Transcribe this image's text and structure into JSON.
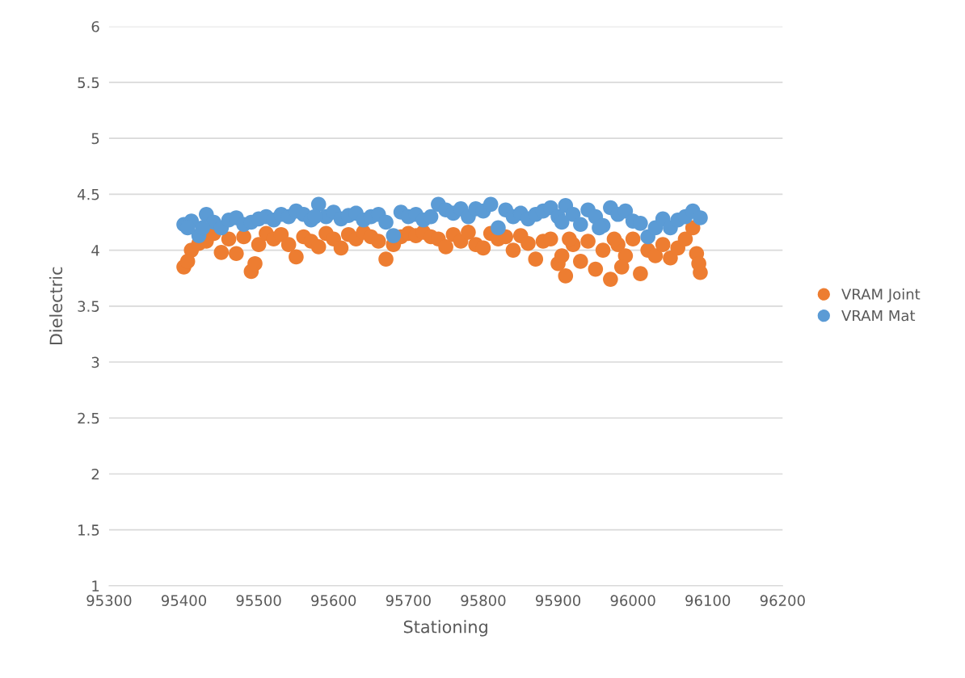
{
  "chart_data": {
    "type": "scatter",
    "xlabel": "Stationing",
    "ylabel": "Dielectric",
    "xlim": [
      95300,
      96200
    ],
    "xticks": [
      95300,
      95400,
      95500,
      95600,
      95700,
      95800,
      95900,
      96000,
      96100,
      96200
    ],
    "ylim": [
      1,
      6
    ],
    "yticks": [
      1,
      1.5,
      2,
      2.5,
      3,
      3.5,
      4,
      4.5,
      5,
      5.5,
      6
    ],
    "grid": "y",
    "legend": "right",
    "marker": "circle",
    "series": [
      {
        "name": "VRAM Joint",
        "color": "#ed7d31",
        "x": [
          95400,
          95410,
          95420,
          95430,
          95440,
          95450,
          95460,
          95470,
          95480,
          95490,
          95500,
          95510,
          95520,
          95530,
          95540,
          95550,
          95560,
          95570,
          95580,
          95590,
          95600,
          95610,
          95620,
          95630,
          95640,
          95650,
          95660,
          95670,
          95680,
          95690,
          95700,
          95710,
          95720,
          95730,
          95740,
          95750,
          95760,
          95770,
          95780,
          95790,
          95800,
          95810,
          95820,
          95830,
          95840,
          95850,
          95860,
          95870,
          95880,
          95890,
          95900,
          95910,
          95920,
          95930,
          95940,
          95950,
          95960,
          95970,
          95980,
          95990,
          96000,
          96010,
          96020,
          96030,
          96040,
          96050,
          96060,
          96070,
          96080,
          96090,
          95405,
          95495,
          95905,
          95915,
          95975,
          95985,
          96085,
          96088
        ],
        "values": [
          3.85,
          4.0,
          4.06,
          4.08,
          4.15,
          3.98,
          4.1,
          3.97,
          4.12,
          3.81,
          4.05,
          4.15,
          4.1,
          4.14,
          4.05,
          3.94,
          4.12,
          4.08,
          4.03,
          4.15,
          4.1,
          4.02,
          4.14,
          4.1,
          4.16,
          4.12,
          4.08,
          3.92,
          4.05,
          4.12,
          4.15,
          4.13,
          4.16,
          4.12,
          4.1,
          4.03,
          4.14,
          4.08,
          4.16,
          4.05,
          4.02,
          4.15,
          4.1,
          4.12,
          4.0,
          4.13,
          4.06,
          3.92,
          4.08,
          4.1,
          3.88,
          3.77,
          4.05,
          3.9,
          4.08,
          3.83,
          4.0,
          3.74,
          4.05,
          3.95,
          4.1,
          3.79,
          4.0,
          3.95,
          4.05,
          3.93,
          4.02,
          4.1,
          4.2,
          3.8,
          3.9,
          3.88,
          3.95,
          4.1,
          4.1,
          3.85,
          3.97,
          3.88
        ]
      },
      {
        "name": "VRAM Mat",
        "color": "#5b9bd5",
        "x": [
          95400,
          95410,
          95420,
          95430,
          95440,
          95450,
          95460,
          95470,
          95480,
          95490,
          95500,
          95510,
          95520,
          95530,
          95540,
          95550,
          95560,
          95570,
          95580,
          95590,
          95600,
          95610,
          95620,
          95630,
          95640,
          95650,
          95660,
          95670,
          95680,
          95690,
          95700,
          95710,
          95720,
          95730,
          95740,
          95750,
          95760,
          95770,
          95780,
          95790,
          95800,
          95810,
          95820,
          95830,
          95840,
          95850,
          95860,
          95870,
          95880,
          95890,
          95900,
          95910,
          95920,
          95930,
          95940,
          95950,
          95960,
          95970,
          95980,
          95990,
          96000,
          96010,
          96020,
          96030,
          96040,
          96050,
          96060,
          96070,
          96080,
          96090,
          95405,
          95425,
          95575,
          95905,
          95955
        ],
        "values": [
          4.23,
          4.26,
          4.13,
          4.32,
          4.25,
          4.2,
          4.27,
          4.29,
          4.23,
          4.25,
          4.28,
          4.3,
          4.27,
          4.32,
          4.3,
          4.35,
          4.32,
          4.27,
          4.41,
          4.3,
          4.34,
          4.28,
          4.31,
          4.33,
          4.27,
          4.3,
          4.32,
          4.25,
          4.13,
          4.34,
          4.3,
          4.32,
          4.27,
          4.3,
          4.41,
          4.36,
          4.33,
          4.37,
          4.3,
          4.37,
          4.35,
          4.41,
          4.2,
          4.36,
          4.3,
          4.33,
          4.28,
          4.32,
          4.35,
          4.38,
          4.3,
          4.4,
          4.32,
          4.23,
          4.36,
          4.3,
          4.22,
          4.38,
          4.32,
          4.35,
          4.26,
          4.24,
          4.12,
          4.2,
          4.28,
          4.2,
          4.27,
          4.3,
          4.35,
          4.29,
          4.2,
          4.2,
          4.3,
          4.25,
          4.2
        ]
      }
    ]
  }
}
